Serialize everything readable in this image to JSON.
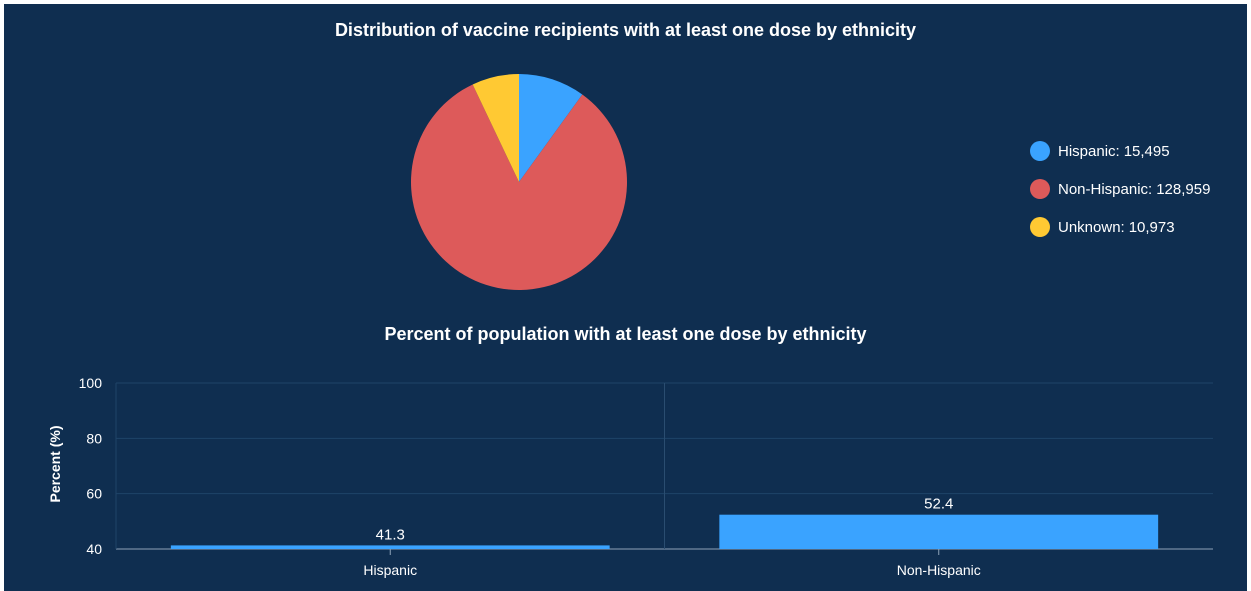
{
  "chart_data": [
    {
      "type": "pie",
      "title": "Distribution of vaccine recipients with at least one dose by ethnicity",
      "slices": [
        {
          "label": "Hispanic",
          "value": 15495,
          "display": "15,495",
          "color": "#3aa3ff"
        },
        {
          "label": "Non-Hispanic",
          "value": 128959,
          "display": "128,959",
          "color": "#dd5a5a"
        },
        {
          "label": "Unknown",
          "value": 10973,
          "display": "10,973",
          "color": "#ffc933"
        }
      ],
      "legend_position": "right"
    },
    {
      "type": "bar",
      "title": "Percent of population with at least one dose by ethnicity",
      "categories": [
        "Hispanic",
        "Non-Hispanic"
      ],
      "values": [
        41.3,
        52.4
      ],
      "value_labels": [
        "41.3",
        "52.4"
      ],
      "xlabel": "",
      "ylabel": "Percent (%)",
      "ylim": [
        40,
        100
      ],
      "yticks": [
        100,
        80,
        60,
        40
      ],
      "bar_color": "#3aa3ff",
      "grid": true
    }
  ]
}
